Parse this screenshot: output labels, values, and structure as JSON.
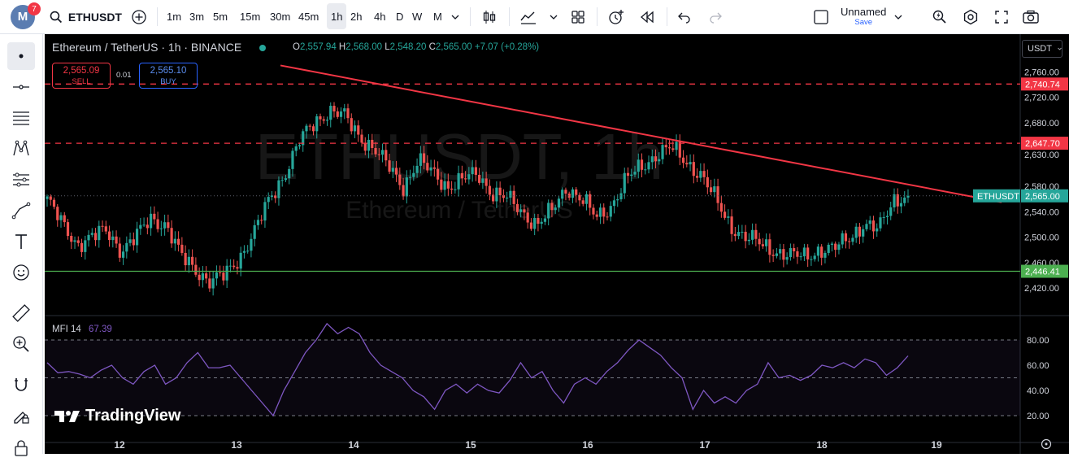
{
  "topbar": {
    "avatar_letter": "M",
    "notification_count": "7",
    "symbol": "ETHUSDT",
    "timeframes": [
      "1m",
      "3m",
      "5m",
      "15m",
      "30m",
      "45m",
      "1h",
      "2h",
      "4h",
      "D",
      "W",
      "M"
    ],
    "active_timeframe": "1h",
    "layout_name": "Unnamed",
    "save_label": "Save"
  },
  "legend": {
    "title": "Ethereum / TetherUS · 1h · BINANCE",
    "open_label": "O",
    "open": "2,557.94",
    "high_label": "H",
    "high": "2,568.00",
    "low_label": "L",
    "low": "2,548.20",
    "close_label": "C",
    "close": "2,565.00",
    "change": "+7.07 (+0.28%)"
  },
  "trade": {
    "sell_price": "2,565.09",
    "sell_label": "SELL",
    "spread": "0.01",
    "buy_price": "2,565.10",
    "buy_label": "BUY"
  },
  "currency_selector": "USDT",
  "watermark": {
    "symbol": "ETHUSDT, 1h",
    "name": "Ethereum / TetherUS"
  },
  "price_axis": {
    "ticks": [
      "2,760.00",
      "2,720.00",
      "2,680.00",
      "2,630.00",
      "2,580.00",
      "2,540.00",
      "2,500.00",
      "2,460.00",
      "2,420.00"
    ],
    "labels": [
      {
        "text": "2,740.74",
        "color": "#f23645"
      },
      {
        "text": "2,647.70",
        "color": "#f23645"
      },
      {
        "text": "2,565.00",
        "color": "#26a69a"
      },
      {
        "text": "2,446.41",
        "color": "#4caf50"
      }
    ],
    "symbol_tag": "ETHUSDT"
  },
  "indicator": {
    "name": "MFI 14",
    "value": "67.39",
    "ticks": [
      "80.00",
      "60.00",
      "40.00",
      "20.00"
    ],
    "color": "#7e57c2"
  },
  "time_axis": [
    "12",
    "13",
    "14",
    "15",
    "16",
    "17",
    "18",
    "19"
  ],
  "branding": "TradingView",
  "chart_data": {
    "type": "candlestick",
    "symbol": "ETHUSDT",
    "interval": "1h",
    "ylim": [
      2410,
      2768
    ],
    "last_close": 2565.0,
    "resistance_levels": [
      2740.74,
      2647.7
    ],
    "support_level": 2446.41,
    "trendline": [
      {
        "x": "11 Dec (late)",
        "y": 2770
      },
      {
        "x": "19 Dec",
        "y": 2555
      }
    ],
    "close_path": [
      2560,
      2520,
      2490,
      2500,
      2510,
      2480,
      2500,
      2530,
      2520,
      2470,
      2450,
      2430,
      2440,
      2470,
      2510,
      2560,
      2600,
      2650,
      2680,
      2700,
      2690,
      2660,
      2640,
      2610,
      2580,
      2620,
      2600,
      2580,
      2590,
      2600,
      2570,
      2560,
      2540,
      2520,
      2540,
      2580,
      2560,
      2530,
      2550,
      2590,
      2610,
      2630,
      2640,
      2620,
      2600,
      2560,
      2520,
      2500,
      2490,
      2480,
      2470,
      2470,
      2480,
      2480,
      2500,
      2520,
      2510,
      2560,
      2565
    ],
    "mfi_path": [
      62,
      54,
      55,
      53,
      50,
      56,
      60,
      50,
      45,
      55,
      60,
      45,
      50,
      62,
      70,
      58,
      58,
      60,
      50,
      40,
      30,
      20,
      40,
      55,
      70,
      80,
      93,
      85,
      90,
      85,
      70,
      60,
      55,
      50,
      40,
      35,
      25,
      40,
      45,
      38,
      45,
      40,
      38,
      48,
      62,
      50,
      55,
      40,
      30,
      45,
      50,
      45,
      55,
      62,
      72,
      80,
      74,
      68,
      58,
      50,
      25,
      40,
      30,
      35,
      30,
      40,
      45,
      62,
      50,
      52,
      48,
      52,
      60,
      58,
      62,
      58,
      65,
      62,
      52,
      58,
      67.39
    ],
    "mfi_levels": [
      80,
      50,
      20
    ]
  }
}
